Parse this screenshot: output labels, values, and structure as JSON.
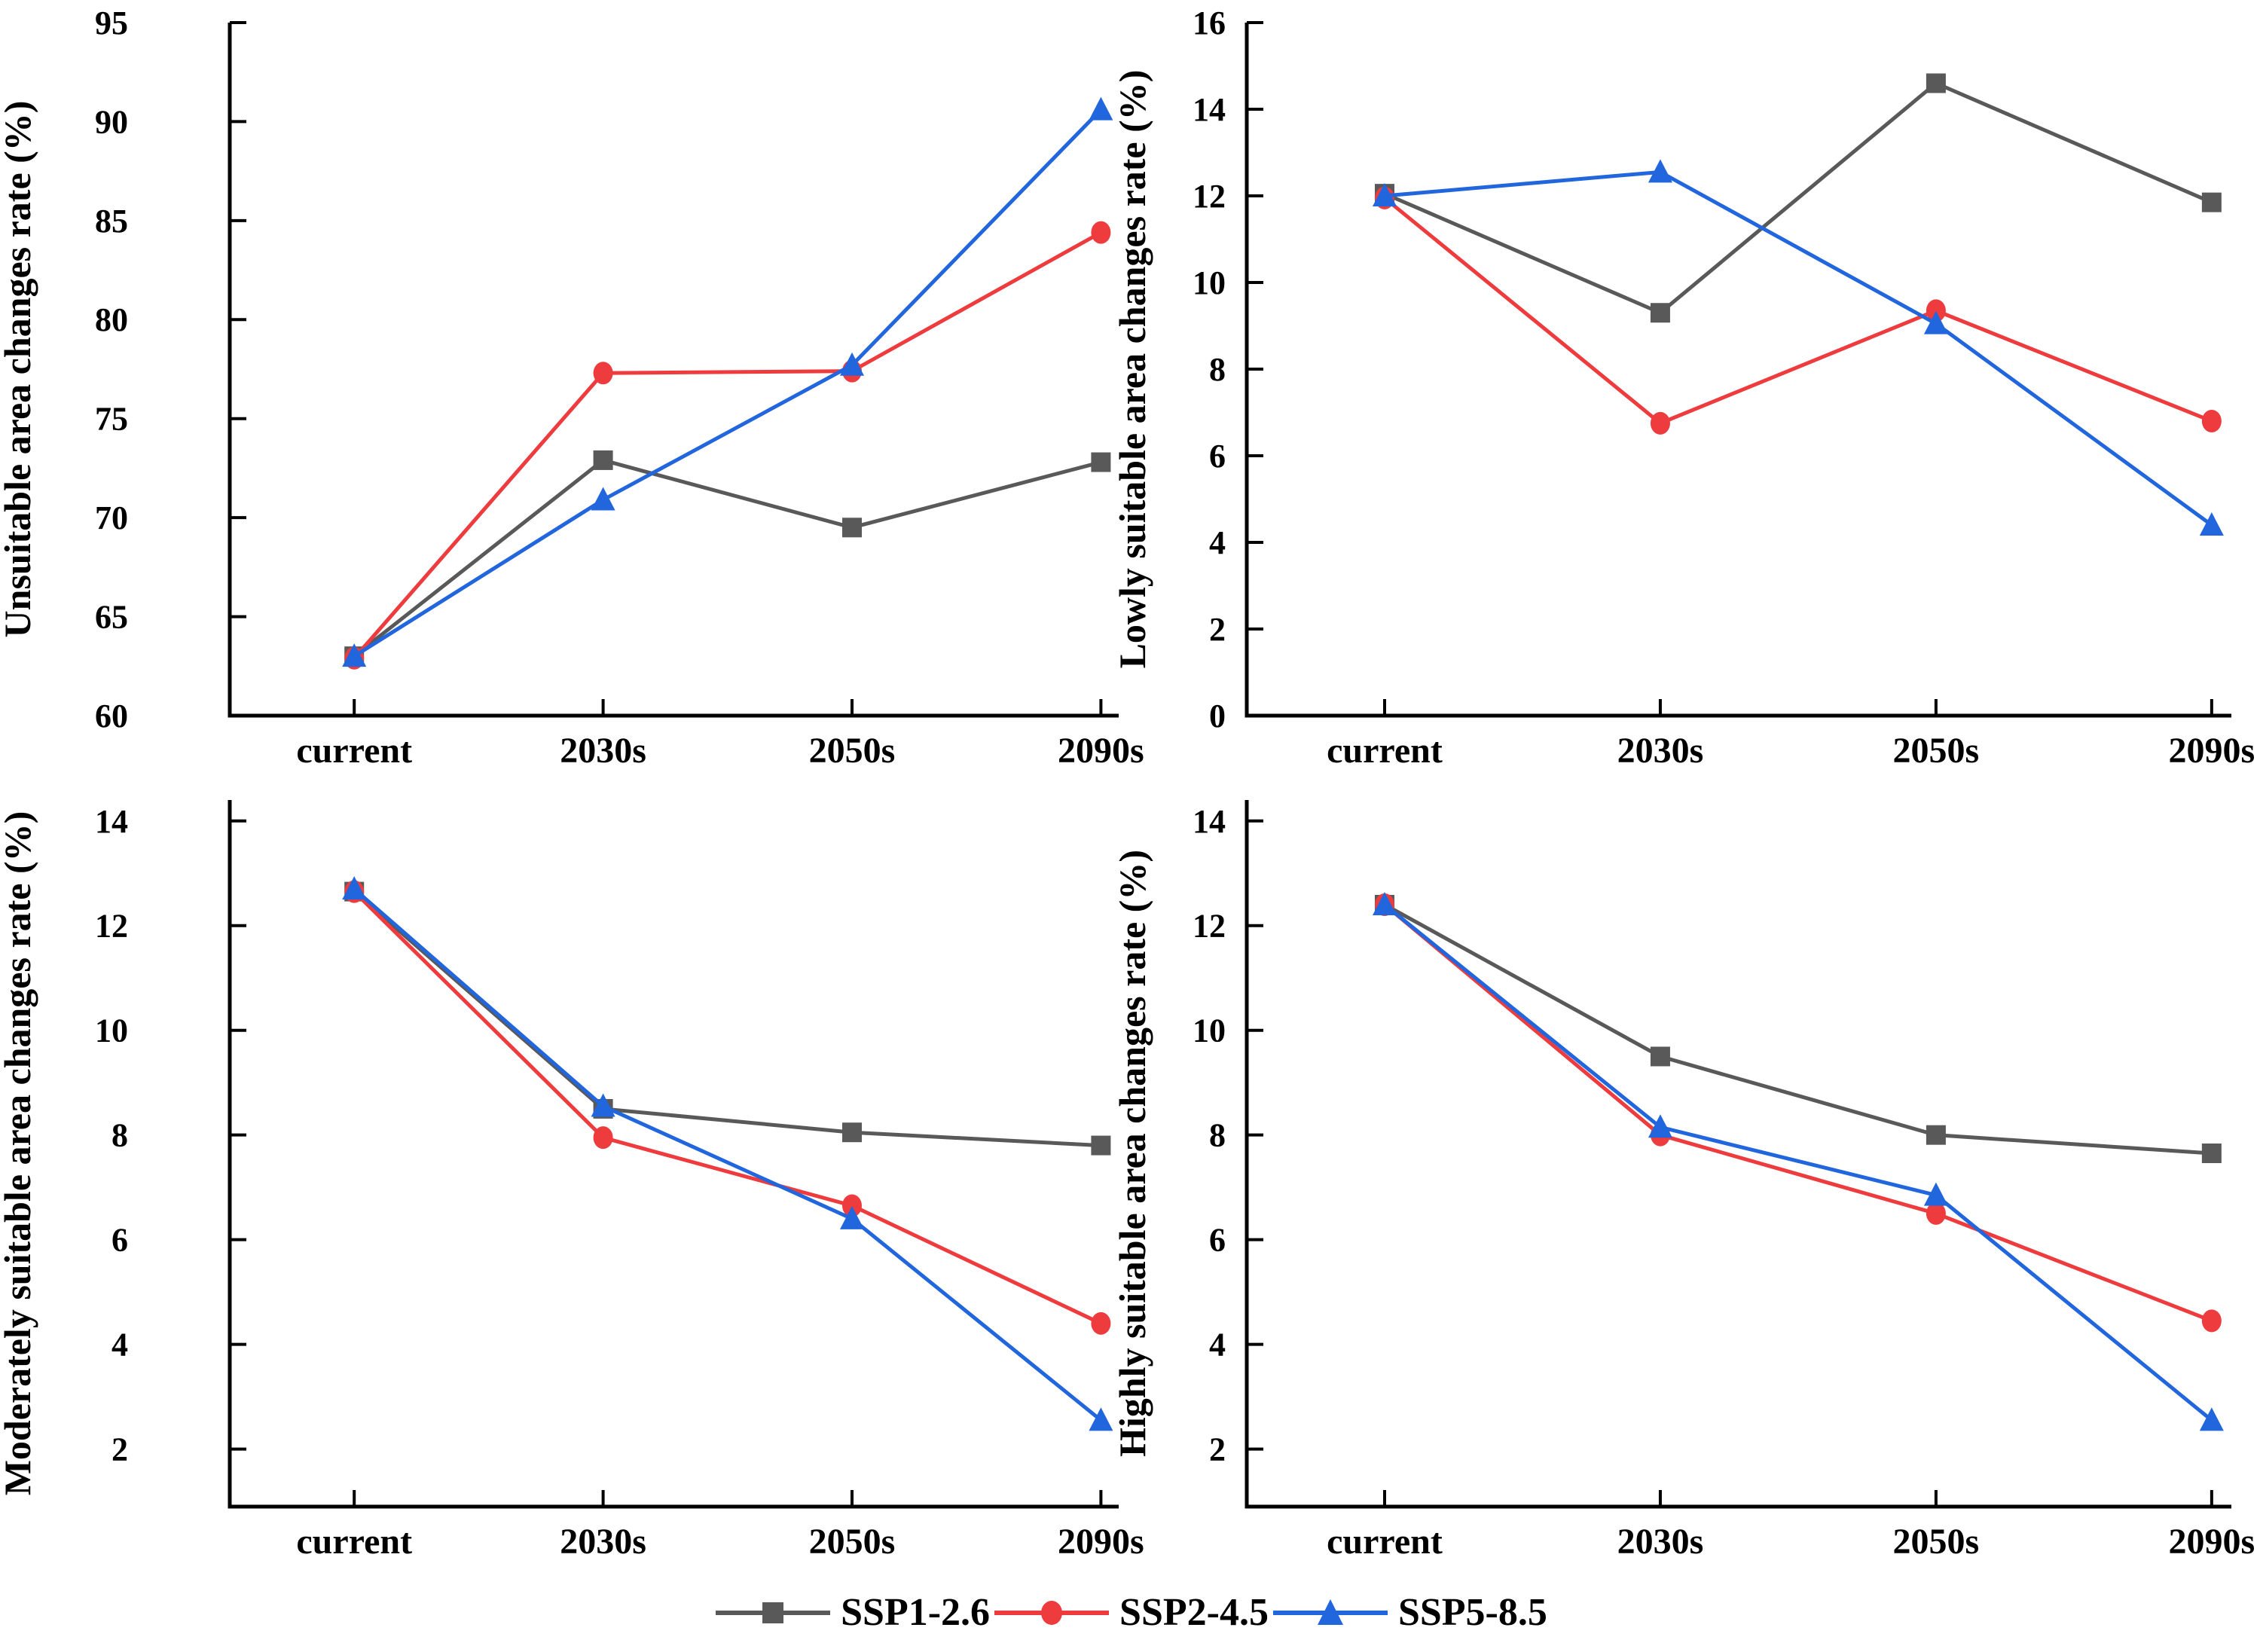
{
  "figure": {
    "background": "#ffffff",
    "x_categories": [
      "current",
      "2030s",
      "2050s",
      "2090s"
    ],
    "axis_color": "#000000",
    "tick_label_fontsize": 44,
    "axis_title_fontsize": 50
  },
  "legend": {
    "items": [
      {
        "label": "SSP1-2.6",
        "color": "#595959",
        "marker": "square"
      },
      {
        "label": "SSP2-4.5",
        "color": "#ee3b3e",
        "marker": "circle"
      },
      {
        "label": "SSP5-8.5",
        "color": "#2166dd",
        "marker": "triangle"
      }
    ]
  },
  "chart_data": [
    {
      "type": "line",
      "position": "top-left",
      "title": "",
      "ylabel": "Unsuitable area changes rate (%)",
      "xlabel": "",
      "categories": [
        "current",
        "2030s",
        "2050s",
        "2090s"
      ],
      "ylim": [
        60,
        95
      ],
      "yticks": [
        60,
        65,
        70,
        75,
        80,
        85,
        90,
        95
      ],
      "grid": false,
      "series": [
        {
          "name": "SSP1-2.6",
          "color": "#595959",
          "marker": "square",
          "values": [
            63.0,
            72.9,
            69.5,
            72.8
          ]
        },
        {
          "name": "SSP2-4.5",
          "color": "#ee3b3e",
          "marker": "circle",
          "values": [
            62.9,
            77.3,
            77.4,
            84.4
          ]
        },
        {
          "name": "SSP5-8.5",
          "color": "#2166dd",
          "marker": "triangle",
          "values": [
            63.0,
            70.9,
            77.7,
            90.6
          ]
        }
      ]
    },
    {
      "type": "line",
      "position": "top-right",
      "title": "",
      "ylabel": "Lowly suitable area changes rate (%)",
      "xlabel": "",
      "categories": [
        "current",
        "2030s",
        "2050s",
        "2090s"
      ],
      "ylim": [
        0,
        16
      ],
      "yticks": [
        0,
        2,
        4,
        6,
        8,
        10,
        12,
        14,
        16
      ],
      "grid": false,
      "series": [
        {
          "name": "SSP1-2.6",
          "color": "#595959",
          "marker": "square",
          "values": [
            12.05,
            9.3,
            14.6,
            11.85
          ]
        },
        {
          "name": "SSP2-4.5",
          "color": "#ee3b3e",
          "marker": "circle",
          "values": [
            11.95,
            6.75,
            9.35,
            6.8
          ]
        },
        {
          "name": "SSP5-8.5",
          "color": "#2166dd",
          "marker": "triangle",
          "values": [
            12.0,
            12.55,
            9.05,
            4.4
          ]
        }
      ]
    },
    {
      "type": "line",
      "position": "bottom-left",
      "title": "",
      "ylabel": "Moderately suitable area changes rate (%)",
      "xlabel": "",
      "categories": [
        "current",
        "2030s",
        "2050s",
        "2090s"
      ],
      "ylim": [
        0.9,
        14.4
      ],
      "yticks": [
        2,
        4,
        6,
        8,
        10,
        12,
        14
      ],
      "grid": false,
      "series": [
        {
          "name": "SSP1-2.6",
          "color": "#595959",
          "marker": "square",
          "values": [
            12.65,
            8.5,
            8.05,
            7.8
          ]
        },
        {
          "name": "SSP2-4.5",
          "color": "#ee3b3e",
          "marker": "circle",
          "values": [
            12.65,
            7.95,
            6.65,
            4.4
          ]
        },
        {
          "name": "SSP5-8.5",
          "color": "#2166dd",
          "marker": "triangle",
          "values": [
            12.7,
            8.55,
            6.4,
            2.55
          ]
        }
      ]
    },
    {
      "type": "line",
      "position": "bottom-right",
      "title": "",
      "ylabel": "Highly suitable area changes rate (%)",
      "xlabel": "",
      "categories": [
        "current",
        "2030s",
        "2050s",
        "2090s"
      ],
      "ylim": [
        0.9,
        14.4
      ],
      "yticks": [
        2,
        4,
        6,
        8,
        10,
        12,
        14
      ],
      "grid": false,
      "series": [
        {
          "name": "SSP1-2.6",
          "color": "#595959",
          "marker": "square",
          "values": [
            12.4,
            9.5,
            8.0,
            7.65
          ]
        },
        {
          "name": "SSP2-4.5",
          "color": "#ee3b3e",
          "marker": "circle",
          "values": [
            12.4,
            8.0,
            6.5,
            4.45
          ]
        },
        {
          "name": "SSP5-8.5",
          "color": "#2166dd",
          "marker": "triangle",
          "values": [
            12.4,
            8.15,
            6.85,
            2.55
          ]
        }
      ]
    }
  ]
}
